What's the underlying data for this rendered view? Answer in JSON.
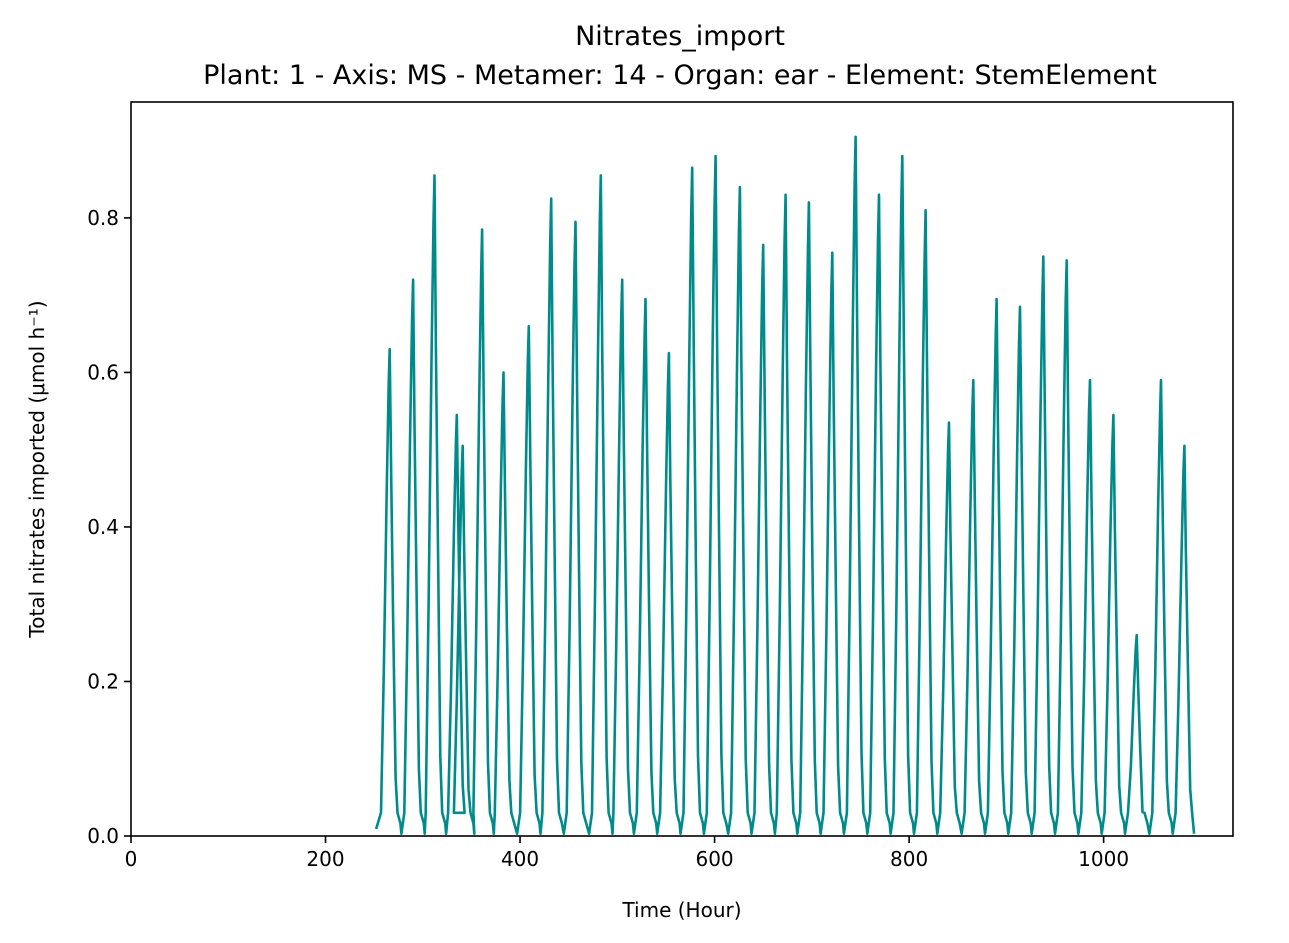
{
  "chart_data": {
    "type": "line",
    "title": "Nitrates_import",
    "subtitle": "Plant: 1 - Axis: MS - Metamer: 14 - Organ: ear - Element: StemElement",
    "xlabel": "Time (Hour)",
    "ylabel": "Total nitrates imported (μmol h⁻¹)",
    "xlim": [
      0,
      1133
    ],
    "ylim": [
      0,
      0.95
    ],
    "xticks": [
      "0",
      "200",
      "400",
      "600",
      "800",
      "1000"
    ],
    "xtick_values": [
      0,
      200,
      400,
      600,
      800,
      1000
    ],
    "yticks": [
      "0.0",
      "0.2",
      "0.4",
      "0.6",
      "0.8"
    ],
    "ytick_values": [
      0.0,
      0.2,
      0.4,
      0.6,
      0.8
    ],
    "grid": false,
    "line_color": "#008b8b",
    "series": [
      {
        "peaks": [
          {
            "t": 266,
            "v": 0.63
          },
          {
            "t": 290,
            "v": 0.72
          },
          {
            "t": 312,
            "v": 0.855
          },
          {
            "t": 335,
            "v": 0.545
          },
          {
            "t": 341,
            "v": 0.505
          },
          {
            "t": 361,
            "v": 0.785
          },
          {
            "t": 383,
            "v": 0.6
          },
          {
            "t": 409,
            "v": 0.66
          },
          {
            "t": 432,
            "v": 0.825
          },
          {
            "t": 457,
            "v": 0.795
          },
          {
            "t": 483,
            "v": 0.855
          },
          {
            "t": 505,
            "v": 0.72
          },
          {
            "t": 529,
            "v": 0.695
          },
          {
            "t": 553,
            "v": 0.625
          },
          {
            "t": 577,
            "v": 0.865
          },
          {
            "t": 601,
            "v": 0.88
          },
          {
            "t": 626,
            "v": 0.84
          },
          {
            "t": 650,
            "v": 0.765
          },
          {
            "t": 673,
            "v": 0.83
          },
          {
            "t": 697,
            "v": 0.82
          },
          {
            "t": 721,
            "v": 0.755
          },
          {
            "t": 745,
            "v": 0.905
          },
          {
            "t": 769,
            "v": 0.83
          },
          {
            "t": 793,
            "v": 0.88
          },
          {
            "t": 817,
            "v": 0.81
          },
          {
            "t": 841,
            "v": 0.535
          },
          {
            "t": 866,
            "v": 0.59
          },
          {
            "t": 890,
            "v": 0.695
          },
          {
            "t": 914,
            "v": 0.685
          },
          {
            "t": 938,
            "v": 0.75
          },
          {
            "t": 962,
            "v": 0.745
          },
          {
            "t": 986,
            "v": 0.59
          },
          {
            "t": 1010,
            "v": 0.545
          },
          {
            "t": 1034,
            "v": 0.26
          },
          {
            "t": 1059,
            "v": 0.59
          },
          {
            "t": 1083,
            "v": 0.505
          }
        ],
        "baseline_min": 0.003,
        "baseline_max": 0.03,
        "t_start": 252,
        "t_end": 1093
      }
    ]
  }
}
